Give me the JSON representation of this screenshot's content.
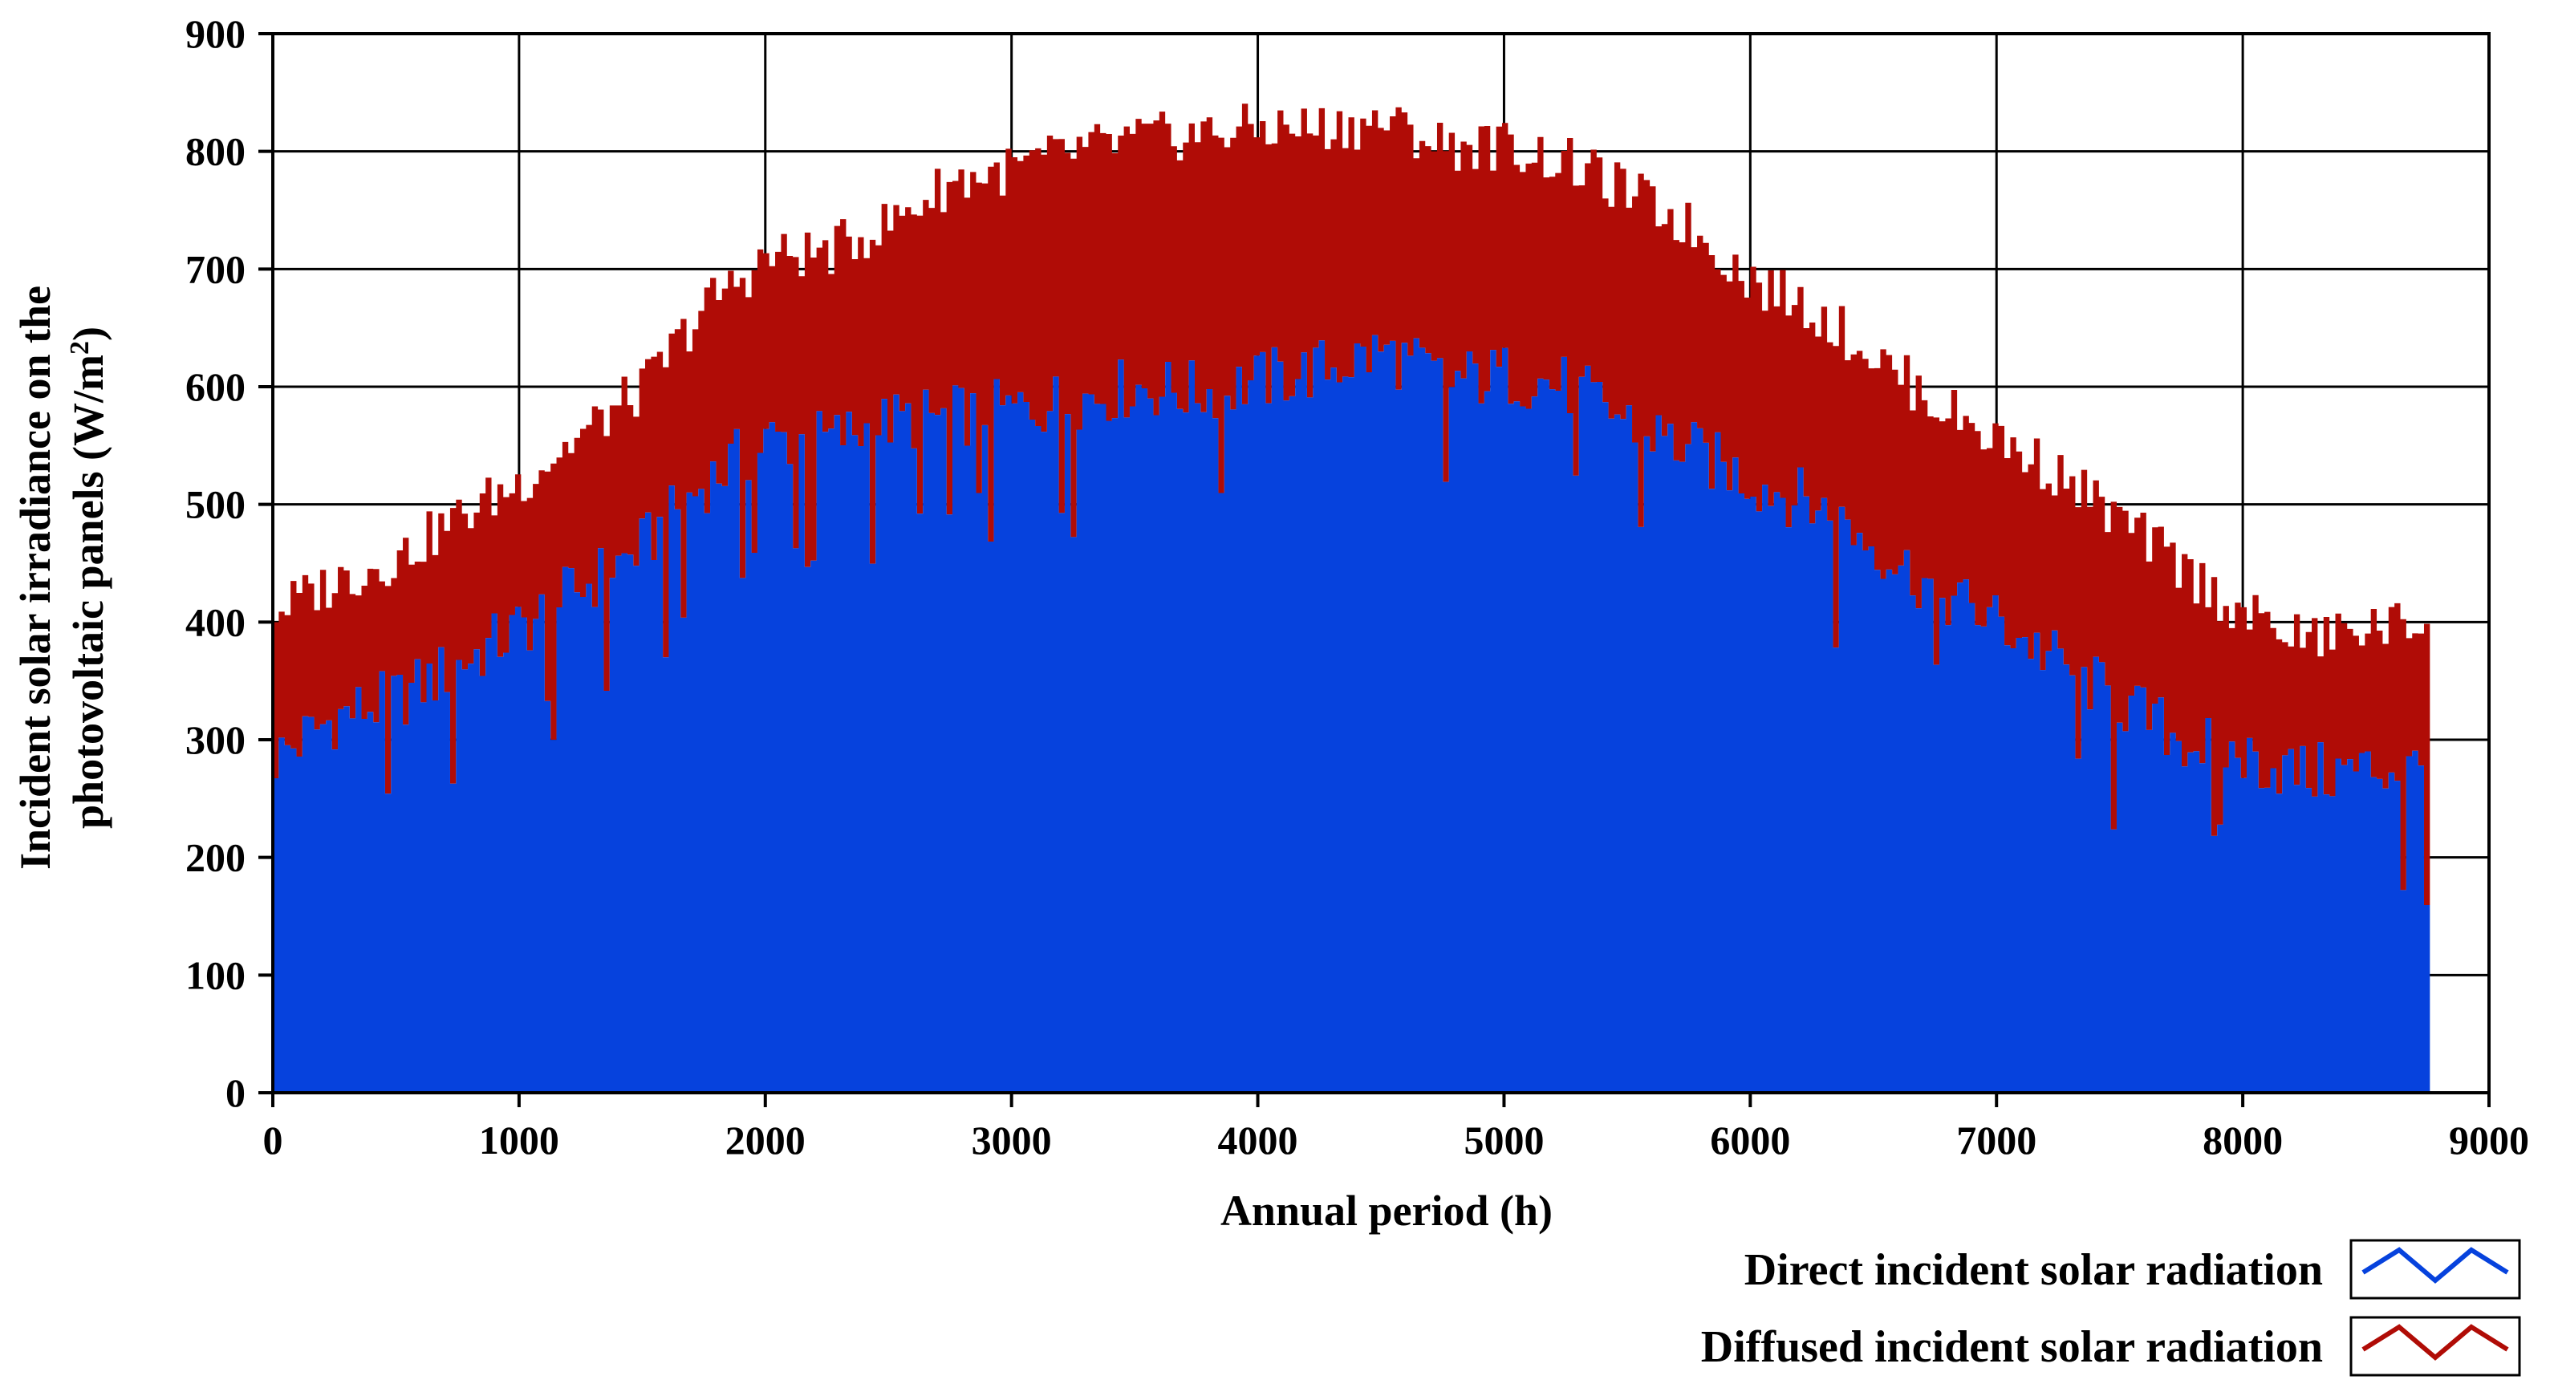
{
  "chart_data": {
    "type": "area",
    "title": "",
    "xlabel": "Annual period (h)",
    "ylabel_line1": "Incident solar irradiance on the",
    "ylabel_line2": "photovoltaic panels (W/m",
    "ylabel_sup": "2",
    "ylabel_close": ")",
    "xlim": [
      0,
      9000
    ],
    "ylim": [
      0,
      900
    ],
    "x_ticks": [
      0,
      1000,
      2000,
      3000,
      4000,
      5000,
      6000,
      7000,
      8000,
      9000
    ],
    "y_ticks": [
      0,
      100,
      200,
      300,
      400,
      500,
      600,
      700,
      800,
      900
    ],
    "x_tick_labels": [
      "0",
      "1000",
      "2000",
      "3000",
      "4000",
      "5000",
      "6000",
      "7000",
      "8000",
      "9000"
    ],
    "y_tick_labels": [
      "0",
      "100",
      "200",
      "300",
      "400",
      "500",
      "600",
      "700",
      "800",
      "900"
    ],
    "grid": true,
    "stacked": true,
    "x": [
      0,
      250,
      500,
      750,
      1000,
      1250,
      1500,
      1750,
      2000,
      2250,
      2500,
      2750,
      3000,
      3250,
      3500,
      3750,
      4000,
      4250,
      4500,
      4750,
      5000,
      5250,
      5500,
      5750,
      6000,
      6250,
      6500,
      6750,
      7000,
      7250,
      7500,
      7750,
      8000,
      8250,
      8500,
      8750
    ],
    "series": [
      {
        "name": "Direct incident solar radiation",
        "color": "#0642dd",
        "values": [
          285,
          320,
          335,
          365,
          395,
          430,
          465,
          520,
          555,
          555,
          570,
          575,
          580,
          590,
          600,
          595,
          605,
          615,
          630,
          605,
          610,
          600,
          570,
          545,
          520,
          500,
          465,
          425,
          400,
          365,
          330,
          300,
          285,
          270,
          275,
          275
        ]
      },
      {
        "name": "Diffused incident solar radiation",
        "color": "#b00c06",
        "values": [
          125,
          115,
          120,
          125,
          125,
          130,
          135,
          150,
          155,
          160,
          170,
          200,
          205,
          210,
          210,
          220,
          215,
          205,
          195,
          200,
          195,
          190,
          195,
          190,
          170,
          165,
          160,
          160,
          155,
          160,
          155,
          145,
          120,
          115,
          120,
          125
        ]
      }
    ],
    "end_x": 8760,
    "legend_position": "bottom-right",
    "legend": [
      {
        "label": "Direct incident solar radiation",
        "color": "#0642dd",
        "icon": "zigzag-line-icon"
      },
      {
        "label": "Diffused incident solar radiation",
        "color": "#b00c06",
        "icon": "zigzag-line-icon"
      }
    ],
    "colors": {
      "direct": "#0642dd",
      "diffused": "#b00c06",
      "grid": "#000000"
    }
  }
}
